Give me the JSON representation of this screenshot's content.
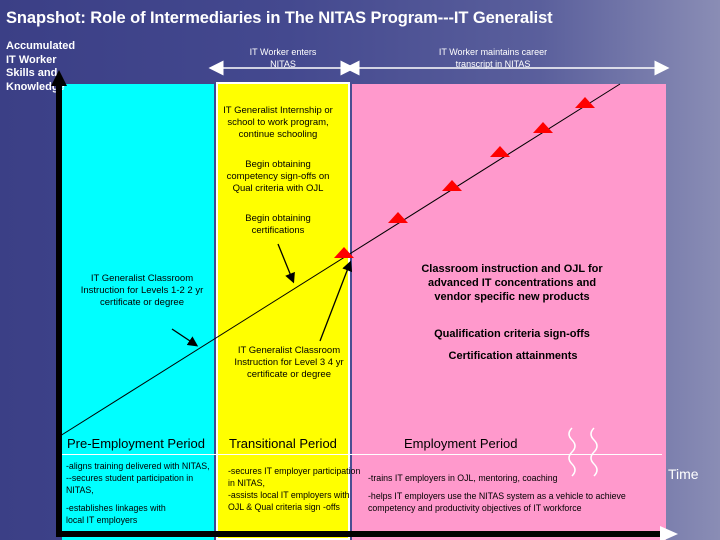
{
  "title": "Snapshot: Role of Intermediaries in The NITAS Program---IT Generalist",
  "y_axis_label": "Accumulated IT Worker Skills and Knowledge",
  "x_axis_label": "Time",
  "headers": {
    "enters": "IT Worker enters NITAS",
    "maintains": "IT Worker maintains career transcript in NITAS"
  },
  "colors": {
    "pre_employment": "#00ffff",
    "transitional": "#ffff00",
    "employment": "#ff99cc",
    "milestone": "#ff0000",
    "background": "#44498f"
  },
  "yellow_notes": {
    "internship": "IT Generalist Internship or school to work program, continue schooling",
    "signoffs": "Begin obtaining competency sign-offs on Qual criteria with OJL",
    "certs": "Begin obtaining certifications"
  },
  "cyan_note": "IT Generalist Classroom Instruction for Levels 1-2 2 yr certificate or degree",
  "level3_note": "IT Generalist Classroom Instruction for Level 3 4 yr certificate or degree",
  "pink_notes": {
    "classroom": "Classroom instruction and OJL for advanced IT concentrations and vendor specific new products",
    "qualification": "Qualification criteria sign-offs",
    "certification": "Certification attainments"
  },
  "periods": {
    "pre": "Pre-Employment Period",
    "transitional": "Transitional Period",
    "employment": "Employment Period"
  },
  "pre_bullets": [
    "-aligns training delivered with NITAS,",
    "--secures student participation in NITAS,",
    "-establishes linkages with local IT employers"
  ],
  "trans_bullets": [
    "-secures IT employer participation in NITAS,",
    "-assists local IT employers with OJL & Qual criteria sign -offs"
  ],
  "emp_bullets": [
    "-trains IT employers in OJL, mentoring, coaching",
    "-helps IT employers use the NITAS system as a vehicle to achieve competency and productivity objectives of IT workforce"
  ]
}
